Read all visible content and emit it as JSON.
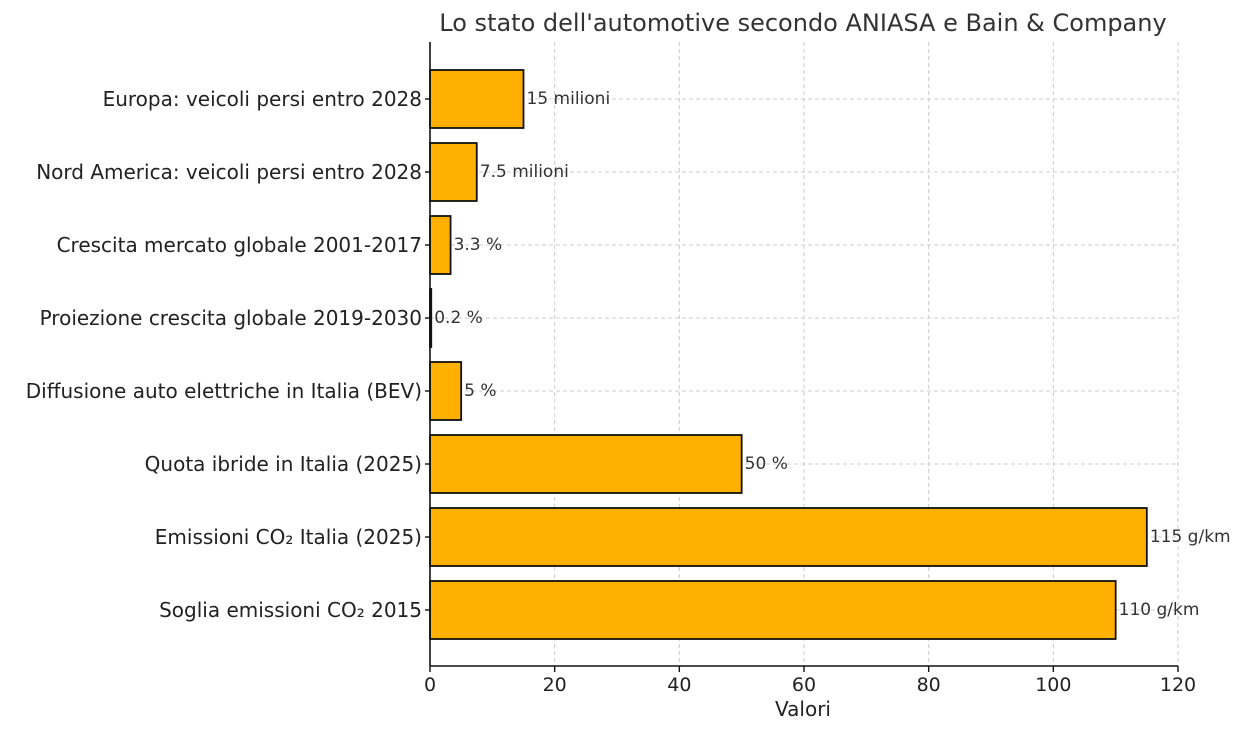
{
  "chart_data": {
    "type": "bar",
    "orientation": "horizontal",
    "title": "Lo stato dell'automotive secondo ANIASA e Bain & Company",
    "xlabel": "Valori",
    "ylabel": "",
    "xlim": [
      0,
      120
    ],
    "xticks": [
      0,
      20,
      40,
      60,
      80,
      100,
      120
    ],
    "grid": true,
    "categories": [
      "Europa: veicoli persi entro 2028",
      "Nord America: veicoli persi entro 2028",
      "Crescita mercato globale 2001-2017",
      "Proiezione crescita globale 2019-2030",
      "Diffusione auto elettriche in Italia (BEV)",
      "Quota ibride in Italia (2025)",
      "Emissioni CO₂ Italia (2025)",
      "Soglia emissioni CO₂ 2015"
    ],
    "values": [
      15,
      7.5,
      3.3,
      0.2,
      5,
      50,
      115,
      110
    ],
    "data_labels": [
      "15 milioni",
      "7.5 milioni",
      "3.3 %",
      "0.2 %",
      "5 %",
      "50 %",
      "115 g/km",
      "110 g/km"
    ],
    "bar_color": "#ffb000",
    "edge_color": "#111111"
  }
}
